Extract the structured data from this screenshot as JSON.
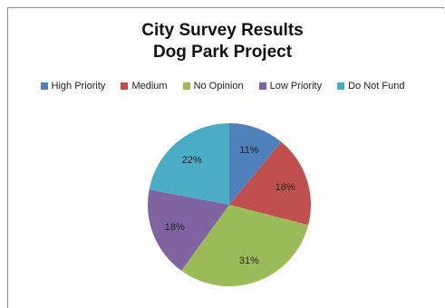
{
  "chart_data": {
    "type": "pie",
    "title": "City Survey Results",
    "subtitle": "Dog Park Project",
    "legend_position": "top",
    "categories": [
      "High Priority",
      "Medium",
      "No Opinion",
      "Low Priority",
      "Do Not Fund"
    ],
    "values": [
      11,
      18,
      31,
      18,
      22
    ],
    "labels": [
      "11%",
      "18%",
      "31%",
      "18%",
      "22%"
    ],
    "colors": [
      "#4f81bd",
      "#c0504d",
      "#9bbb59",
      "#8064a2",
      "#4bacc6"
    ]
  }
}
